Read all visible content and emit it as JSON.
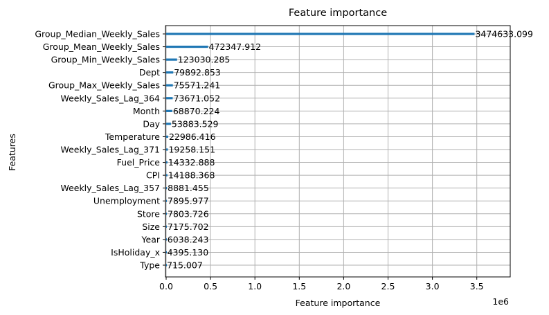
{
  "chart_data": {
    "type": "bar",
    "orientation": "horizontal",
    "title": "Feature importance",
    "xlabel": "Feature importance",
    "ylabel": "Features",
    "x_offset_text": "1e6",
    "xlim": [
      0,
      3822096
    ],
    "x_ticks": [
      0,
      0.5,
      1.0,
      1.5,
      2.0,
      2.5,
      3.0,
      3.5
    ],
    "x_tick_labels": [
      "0.0",
      "0.5",
      "1.0",
      "1.5",
      "2.0",
      "2.5",
      "3.0",
      "3.5"
    ],
    "x_tick_scale": 1000000,
    "grid": true,
    "bar_color": "#1f77b4",
    "categories": [
      "Group_Median_Weekly_Sales",
      "Group_Mean_Weekly_Sales",
      "Group_Min_Weekly_Sales",
      "Dept",
      "Group_Max_Weekly_Sales",
      "Weekly_Sales_Lag_364",
      "Month",
      "Day",
      "Temperature",
      "Weekly_Sales_Lag_371",
      "Fuel_Price",
      "CPI",
      "Weekly_Sales_Lag_357",
      "Unemployment",
      "Store",
      "Size",
      "Year",
      "IsHoliday_x",
      "Type"
    ],
    "values": [
      3474633.099,
      472347.912,
      123030.285,
      79892.853,
      75571.241,
      73671.052,
      68870.224,
      53883.529,
      22986.416,
      19258.151,
      14332.888,
      14188.368,
      8881.455,
      7895.977,
      7803.726,
      7175.702,
      6038.243,
      4395.13,
      715.007
    ],
    "value_labels": [
      "3474633.099",
      "472347.912",
      "123030.285",
      "79892.853",
      "75571.241",
      "73671.052",
      "68870.224",
      "53883.529",
      "22986.416",
      "19258.151",
      "14332.888",
      "14188.368",
      "8881.455",
      "7895.977",
      "7803.726",
      "7175.702",
      "6038.243",
      "4395.130",
      "715.007"
    ]
  }
}
